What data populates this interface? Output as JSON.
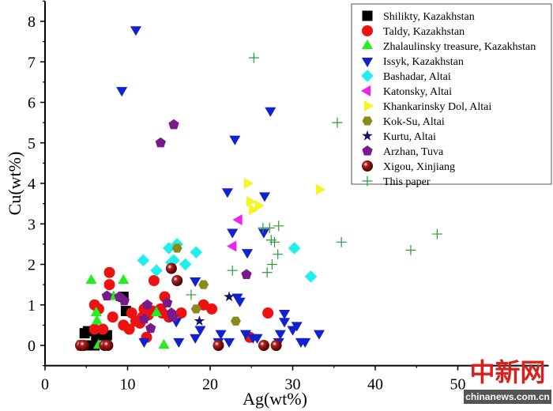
{
  "chart_data": {
    "type": "scatter",
    "xlabel": "Ag(wt%)",
    "ylabel": "Cu(wt%)",
    "xlim": [
      0,
      61
    ],
    "ylim": [
      -0.5,
      8.5
    ],
    "xticks": [
      "0",
      "10",
      "20",
      "30",
      "40",
      "50"
    ],
    "yticks": [
      "0",
      "1",
      "2",
      "3",
      "4",
      "5",
      "6",
      "7",
      "8"
    ],
    "legend_position": "top-right",
    "grid": false,
    "series": [
      {
        "name": "Shilikty, Kazakhstan",
        "marker": "square",
        "color": "#000000",
        "points": [
          [
            4.5,
            0
          ],
          [
            4.8,
            0.3
          ],
          [
            5.2,
            0.35
          ],
          [
            5,
            0
          ],
          [
            6,
            0
          ],
          [
            6.5,
            0.3
          ],
          [
            7,
            0.25
          ],
          [
            7.5,
            0.25
          ],
          [
            9.5,
            1.2
          ],
          [
            9.8,
            0.85
          ],
          [
            6.2,
            0.25
          ],
          [
            5.5,
            0
          ]
        ]
      },
      {
        "name": "Taldy, Kazakhstan",
        "marker": "circle",
        "color": "#ee1111",
        "points": [
          [
            6,
            1.0
          ],
          [
            6.5,
            0.9
          ],
          [
            6,
            0.4
          ],
          [
            7,
            0.4
          ],
          [
            7.8,
            1.8
          ],
          [
            7.8,
            1.5
          ],
          [
            8.2,
            0.7
          ],
          [
            9.5,
            0.5
          ],
          [
            10.2,
            0.4
          ],
          [
            10.5,
            0.8
          ],
          [
            11,
            0.6
          ],
          [
            11.5,
            0.55
          ],
          [
            12,
            0.9
          ],
          [
            12.3,
            0.2
          ],
          [
            13,
            0.85
          ],
          [
            13.2,
            1.6
          ],
          [
            14,
            0.9
          ],
          [
            14.5,
            1.2
          ],
          [
            14.2,
            0.8
          ],
          [
            15,
            0.7
          ],
          [
            16.5,
            0.8
          ],
          [
            19.2,
            1.0
          ],
          [
            20.2,
            0.9
          ],
          [
            27,
            0.8
          ],
          [
            24.8,
            0.2
          ],
          [
            11.8,
            0.7
          ],
          [
            12.5,
            0.75
          ]
        ]
      },
      {
        "name": "Zhalaulinsky treasure, Kazakhstan",
        "marker": "triangle-up",
        "color": "#22ee22",
        "points": [
          [
            5.6,
            1.6
          ],
          [
            9.5,
            1.6
          ],
          [
            6.2,
            0.8
          ],
          [
            6.3,
            0.6
          ],
          [
            8.3,
            1.2
          ],
          [
            13.5,
            0.8
          ],
          [
            14.4,
            0
          ],
          [
            6.5,
            0
          ]
        ]
      },
      {
        "name": "Issyk, Kazakhstan",
        "marker": "triangle-down",
        "color": "#1122cc",
        "points": [
          [
            11,
            7.8
          ],
          [
            9.3,
            6.3
          ],
          [
            27.3,
            5.8
          ],
          [
            23,
            5.1
          ],
          [
            22.1,
            3.8
          ],
          [
            26.6,
            3.7
          ],
          [
            22.7,
            2.8
          ],
          [
            26.5,
            2.8
          ],
          [
            24.5,
            2.3
          ],
          [
            18.2,
            1.6
          ],
          [
            23.3,
            1.2
          ],
          [
            23.6,
            1.1
          ],
          [
            15.9,
            0.6
          ],
          [
            18.8,
            0.4
          ],
          [
            12,
            0.1
          ],
          [
            16.2,
            0.1
          ],
          [
            18.2,
            0.2
          ],
          [
            21,
            0.1
          ],
          [
            21.3,
            0.3
          ],
          [
            22.3,
            0.1
          ],
          [
            24.3,
            0.3
          ],
          [
            25.2,
            0.2
          ],
          [
            25.7,
            0.2
          ],
          [
            28.5,
            0.3
          ],
          [
            28.3,
            0.1
          ],
          [
            29,
            0.8
          ],
          [
            29,
            0.6
          ],
          [
            30,
            0.4
          ],
          [
            30.5,
            0.5
          ],
          [
            31,
            0.1
          ],
          [
            31.5,
            0.1
          ],
          [
            33.2,
            0.3
          ]
        ]
      },
      {
        "name": "Bashadar, Altai",
        "marker": "diamond",
        "color": "#22eeee",
        "points": [
          [
            11.9,
            2.1
          ],
          [
            13.5,
            1.85
          ],
          [
            15,
            2.4
          ],
          [
            15.3,
            2.05
          ],
          [
            15.6,
            2.1
          ],
          [
            16,
            2.5
          ],
          [
            17,
            2.0
          ],
          [
            18.3,
            2.3
          ],
          [
            30.2,
            2.4
          ],
          [
            32.2,
            1.7
          ]
        ]
      },
      {
        "name": "Katonsky, Altai",
        "marker": "triangle-left",
        "color": "#ee22ee",
        "points": [
          [
            23.5,
            3.1
          ],
          [
            22.8,
            2.45
          ]
        ]
      },
      {
        "name": "Khankarinsky Dol, Altai",
        "marker": "triangle-right",
        "color": "#f5f522",
        "points": [
          [
            24.5,
            4.0
          ],
          [
            24.8,
            3.55
          ],
          [
            25.1,
            3.35
          ],
          [
            25.8,
            3.45
          ],
          [
            33.2,
            3.85
          ]
        ]
      },
      {
        "name": "Kok-Su, Altai",
        "marker": "hexagon",
        "color": "#8a8a1a",
        "points": [
          [
            16,
            2.4
          ],
          [
            19.2,
            1.5
          ],
          [
            18.3,
            0.9
          ],
          [
            23.1,
            0.6
          ]
        ]
      },
      {
        "name": "Kurtu, Altai",
        "marker": "star",
        "color": "#11116e",
        "points": [
          [
            22.3,
            1.2
          ],
          [
            18.7,
            0.6
          ]
        ]
      },
      {
        "name": "Arzhan, Tuva",
        "marker": "pentagon",
        "color": "#7a1a8a",
        "points": [
          [
            15.6,
            5.45
          ],
          [
            14,
            5.0
          ],
          [
            24.4,
            1.75
          ],
          [
            7.5,
            1.22
          ],
          [
            9,
            1.2
          ],
          [
            9.6,
            1.1
          ],
          [
            12.4,
            1.0
          ],
          [
            12,
            0.65
          ],
          [
            12.8,
            0.42
          ],
          [
            14.8,
            1.05
          ],
          [
            15.3,
            0.8
          ],
          [
            15.5,
            0.7
          ]
        ]
      },
      {
        "name": "Xigou, Xinjiang",
        "marker": "sphere",
        "color": "#8a0a0a",
        "points": [
          [
            4.3,
            0
          ],
          [
            4.7,
            0
          ],
          [
            7.2,
            0
          ],
          [
            7.6,
            0
          ],
          [
            15.3,
            1.9
          ],
          [
            16,
            1.6
          ],
          [
            21,
            0
          ],
          [
            26.5,
            0
          ],
          [
            28,
            0
          ]
        ]
      },
      {
        "name": "This paper",
        "marker": "plus",
        "color": "#2a9a3a",
        "points": [
          [
            25.3,
            7.1
          ],
          [
            35.4,
            5.5
          ],
          [
            26.4,
            2.9
          ],
          [
            27.2,
            2.9
          ],
          [
            28.3,
            2.95
          ],
          [
            27.4,
            2.6
          ],
          [
            27.8,
            2.55
          ],
          [
            28.2,
            2.25
          ],
          [
            27.5,
            2.0
          ],
          [
            26.9,
            1.8
          ],
          [
            22.7,
            1.85
          ],
          [
            17.7,
            1.25
          ],
          [
            35.9,
            2.55
          ],
          [
            44.3,
            2.35
          ],
          [
            47.5,
            2.75
          ]
        ]
      }
    ]
  },
  "watermark": {
    "logo": "中新网",
    "site": "chinanews.com.cn"
  }
}
